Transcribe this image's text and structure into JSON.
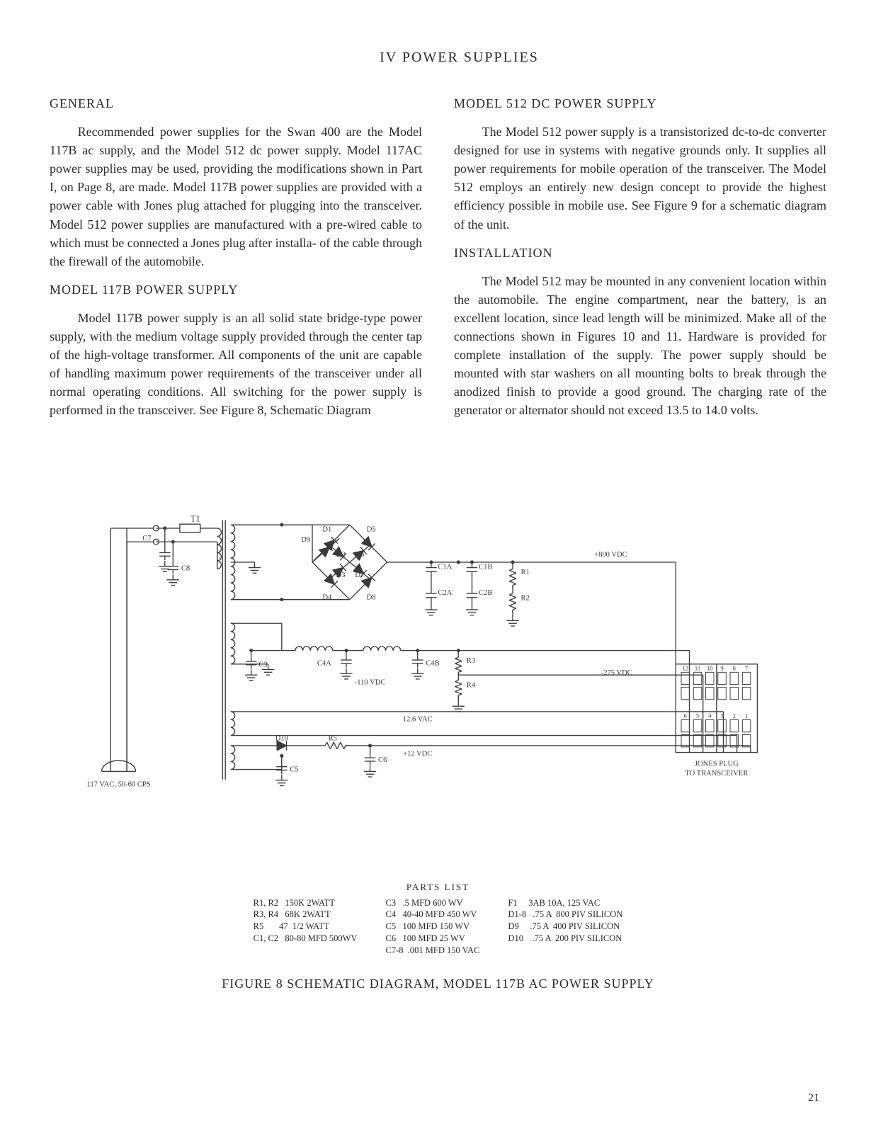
{
  "page": {
    "section_title": "IV  POWER  SUPPLIES",
    "number": "21"
  },
  "left": {
    "h_general": "GENERAL",
    "p_general": "Recommended power supplies for the Swan 400 are the Model 117B ac supply, and the Model 512 dc power supply.  Model 117AC power supplies may be used, providing the modifications shown in Part I, on Page 8, are made.  Model 117B power supplies are provided with a power cable with Jones plug attached for plugging into the transceiver.  Model 512 power supplies are manufactured with a pre-wired cable to which must be connected a Jones plug after installa- of the cable through the firewall of the automobile.",
    "h_117b": "MODEL 117B POWER SUPPLY",
    "p_117b": "Model 117B power supply is an all solid state bridge-type power supply, with the medium voltage supply provided through the center tap of the high-voltage transformer.  All components of the unit are capable of handling maximum power requirements of the transceiver under all normal operating conditions.  All switching for the power supply is performed in the transceiver.  See Figure 8, Schematic Diagram"
  },
  "right": {
    "h_512": "MODEL 512 DC POWER SUPPLY",
    "p_512": "The Model 512 power supply is a transistorized dc-to-dc converter designed for use in systems with negative grounds only.  It supplies all power requirements for mobile operation of the transceiver.  The Model 512 employs an entirely new design concept to provide the highest efficiency possible in mobile use.  See Figure 9 for a schematic diagram of the unit.",
    "h_install": "INSTALLATION",
    "p_install": "The Model 512 may be mounted in any convenient location within the automobile.  The engine compartment, near the battery, is an excellent location, since lead length will be minimized.  Make all of the connections shown in Figures 10 and 11.  Hardware is provided for complete installation of the supply.  The power supply should be mounted with star washers on all mounting bolts to break through the anodized finish to provide a good ground.  The charging rate of the generator or alternator should not exceed 13.5 to 14.0 volts."
  },
  "schematic": {
    "caption": "FIGURE 8   SCHEMATIC DIAGRAM,   MODEL 117B AC POWER SUPPLY",
    "parts_title": "PARTS LIST",
    "labels": {
      "ac_in": "117 VAC, 50-60 CPS",
      "t1": "T1",
      "d1": "D1",
      "d2": "D2",
      "d3": "D3",
      "d4": "D4",
      "d5": "D5",
      "d6": "D6",
      "d7": "D7",
      "d8": "D8",
      "d9": "D9",
      "d10": "D10",
      "c1": "C1",
      "c2": "C2",
      "c1a": "C1A",
      "c1b": "C1B",
      "c2a": "C2A",
      "c2b": "C2B",
      "c4a": "C4A",
      "c4b": "C4B",
      "c3": "C3",
      "c5": "C5",
      "c6": "C6",
      "c7": "C7",
      "c8": "C8",
      "r1": "R1",
      "r2": "R2",
      "r3": "R3",
      "r4": "R4",
      "r5": "R5",
      "hv": "+800 VDC",
      "mv": "-110 VDC",
      "bias": "-275 VDC",
      "ac12": "12.6 VAC",
      "dc12": "+12 VDC",
      "jones": "JONES PLUG\nTO TRANSCEIVER",
      "pins": [
        "12",
        "11",
        "10",
        "9",
        "8",
        "7",
        "6",
        "5",
        "4",
        "3",
        "2",
        "1"
      ]
    },
    "parts_cols": [
      "R1, R2   150K 2WATT\nR3, R4   68K 2WATT\nR5       47  1/2 WATT\nC1, C2   80-80 MFD 500WV",
      "C3   .5 MFD 600 WV\nC4   40-40 MFD 450 WV\nC5   100 MFD 150 WV\nC6   100 MFD 25 WV\nC7-8  .001 MFD 150 VAC",
      "F1     3AB 10A, 125 VAC\nD1-8   .75 A  800 PIV SILICON\nD9     .75 A  400 PIV SILICON\nD10    .75 A  200 PIV SILICON"
    ],
    "line_color": "#3a3a3a",
    "line_width": 1.4,
    "text_size_small": 11,
    "text_size_med": 13
  }
}
